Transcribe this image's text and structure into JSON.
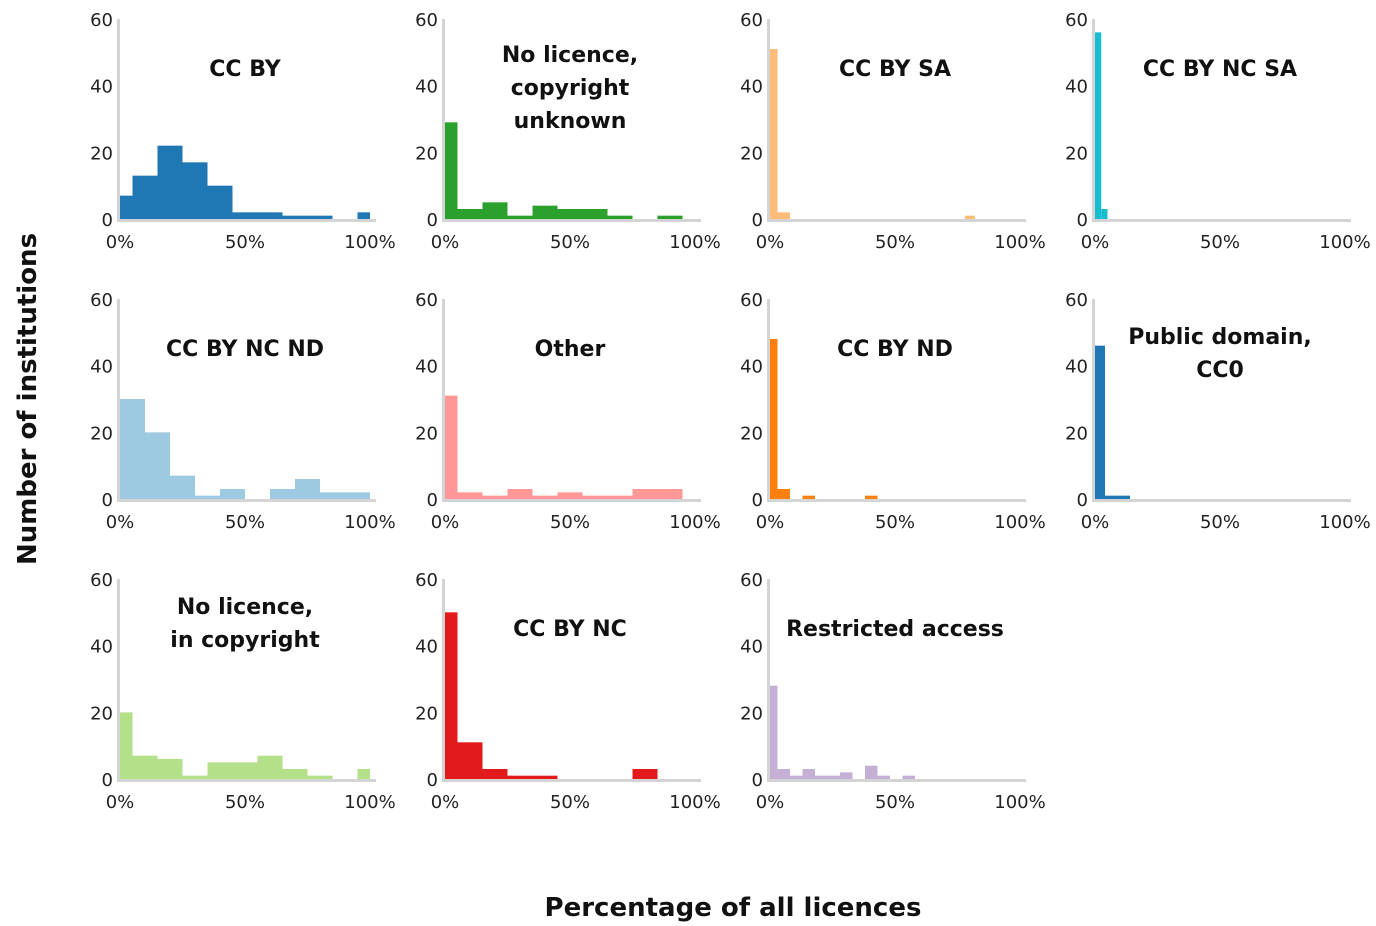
{
  "figure": {
    "xlabel": "Percentage of all licences",
    "ylabel": "Number of institutions"
  },
  "chart_data": [
    {
      "type": "bar",
      "title_lines": [
        "CC BY"
      ],
      "color": "#1f77b4",
      "xlim": [
        0,
        100
      ],
      "ylim": [
        0,
        60
      ],
      "x_ticks": [
        "0%",
        "50%",
        "100%"
      ],
      "y_ticks": [
        "0",
        "20",
        "40",
        "60"
      ],
      "bins": [
        {
          "x0": 0,
          "x1": 5,
          "count": 7
        },
        {
          "x0": 5,
          "x1": 15,
          "count": 13
        },
        {
          "x0": 15,
          "x1": 25,
          "count": 22
        },
        {
          "x0": 25,
          "x1": 35,
          "count": 17
        },
        {
          "x0": 35,
          "x1": 45,
          "count": 10
        },
        {
          "x0": 45,
          "x1": 65,
          "count": 2
        },
        {
          "x0": 65,
          "x1": 85,
          "count": 1
        },
        {
          "x0": 95,
          "x1": 100,
          "count": 2
        }
      ]
    },
    {
      "type": "bar",
      "title_lines": [
        "No licence,",
        "copyright",
        "unknown"
      ],
      "color": "#2ca02c",
      "xlim": [
        0,
        100
      ],
      "ylim": [
        0,
        60
      ],
      "x_ticks": [
        "0%",
        "50%",
        "100%"
      ],
      "y_ticks": [
        "0",
        "20",
        "40",
        "60"
      ],
      "bins": [
        {
          "x0": 0,
          "x1": 5,
          "count": 29
        },
        {
          "x0": 5,
          "x1": 15,
          "count": 3
        },
        {
          "x0": 15,
          "x1": 25,
          "count": 5
        },
        {
          "x0": 25,
          "x1": 35,
          "count": 1
        },
        {
          "x0": 35,
          "x1": 45,
          "count": 4
        },
        {
          "x0": 45,
          "x1": 65,
          "count": 3
        },
        {
          "x0": 65,
          "x1": 75,
          "count": 1
        },
        {
          "x0": 85,
          "x1": 95,
          "count": 1
        }
      ]
    },
    {
      "type": "bar",
      "title_lines": [
        "CC BY SA"
      ],
      "color": "#ffbb78",
      "xlim": [
        0,
        100
      ],
      "ylim": [
        0,
        60
      ],
      "x_ticks": [
        "0%",
        "50%",
        "100%"
      ],
      "y_ticks": [
        "0",
        "20",
        "40",
        "60"
      ],
      "bins": [
        {
          "x0": 0,
          "x1": 3,
          "count": 51
        },
        {
          "x0": 3,
          "x1": 8,
          "count": 2
        },
        {
          "x0": 78,
          "x1": 82,
          "count": 1
        }
      ]
    },
    {
      "type": "bar",
      "title_lines": [
        "CC BY NC SA"
      ],
      "color": "#17becf",
      "xlim": [
        0,
        100
      ],
      "ylim": [
        0,
        60
      ],
      "x_ticks": [
        "0%",
        "50%",
        "100%"
      ],
      "y_ticks": [
        "0",
        "20",
        "40",
        "60"
      ],
      "bins": [
        {
          "x0": 0,
          "x1": 2.5,
          "count": 56
        },
        {
          "x0": 2.5,
          "x1": 5,
          "count": 3
        }
      ]
    },
    {
      "type": "bar",
      "title_lines": [
        "CC BY NC ND"
      ],
      "color": "#9ecae1",
      "xlim": [
        0,
        100
      ],
      "ylim": [
        0,
        60
      ],
      "x_ticks": [
        "0%",
        "50%",
        "100%"
      ],
      "y_ticks": [
        "0",
        "20",
        "40",
        "60"
      ],
      "bins": [
        {
          "x0": 0,
          "x1": 10,
          "count": 30
        },
        {
          "x0": 10,
          "x1": 20,
          "count": 20
        },
        {
          "x0": 20,
          "x1": 30,
          "count": 7
        },
        {
          "x0": 30,
          "x1": 40,
          "count": 1
        },
        {
          "x0": 40,
          "x1": 50,
          "count": 3
        },
        {
          "x0": 50,
          "x1": 60,
          "count": 0
        },
        {
          "x0": 60,
          "x1": 70,
          "count": 3
        },
        {
          "x0": 70,
          "x1": 80,
          "count": 6
        },
        {
          "x0": 80,
          "x1": 100,
          "count": 2
        }
      ]
    },
    {
      "type": "bar",
      "title_lines": [
        "Other"
      ],
      "color": "#ff9896",
      "xlim": [
        0,
        100
      ],
      "ylim": [
        0,
        60
      ],
      "x_ticks": [
        "0%",
        "50%",
        "100%"
      ],
      "y_ticks": [
        "0",
        "20",
        "40",
        "60"
      ],
      "bins": [
        {
          "x0": 0,
          "x1": 5,
          "count": 31
        },
        {
          "x0": 5,
          "x1": 15,
          "count": 2
        },
        {
          "x0": 15,
          "x1": 25,
          "count": 1
        },
        {
          "x0": 25,
          "x1": 35,
          "count": 3
        },
        {
          "x0": 35,
          "x1": 45,
          "count": 1
        },
        {
          "x0": 45,
          "x1": 55,
          "count": 2
        },
        {
          "x0": 55,
          "x1": 75,
          "count": 1
        },
        {
          "x0": 75,
          "x1": 95,
          "count": 3
        }
      ]
    },
    {
      "type": "bar",
      "title_lines": [
        "CC BY ND"
      ],
      "color": "#ff7f0e",
      "xlim": [
        0,
        100
      ],
      "ylim": [
        0,
        60
      ],
      "x_ticks": [
        "0%",
        "50%",
        "100%"
      ],
      "y_ticks": [
        "0",
        "20",
        "40",
        "60"
      ],
      "bins": [
        {
          "x0": 0,
          "x1": 3,
          "count": 48
        },
        {
          "x0": 3,
          "x1": 8,
          "count": 3
        },
        {
          "x0": 13,
          "x1": 18,
          "count": 1
        },
        {
          "x0": 38,
          "x1": 43,
          "count": 1
        }
      ]
    },
    {
      "type": "bar",
      "title_lines": [
        "Public domain,",
        "CC0"
      ],
      "color": "#1f77b4",
      "xlim": [
        0,
        100
      ],
      "ylim": [
        0,
        60
      ],
      "x_ticks": [
        "0%",
        "50%",
        "100%"
      ],
      "y_ticks": [
        "0",
        "20",
        "40",
        "60"
      ],
      "bins": [
        {
          "x0": 0,
          "x1": 4,
          "count": 46
        },
        {
          "x0": 4,
          "x1": 14,
          "count": 1
        }
      ]
    },
    {
      "type": "bar",
      "title_lines": [
        "No licence,",
        "in copyright"
      ],
      "color": "#b5e08a",
      "xlim": [
        0,
        100
      ],
      "ylim": [
        0,
        60
      ],
      "x_ticks": [
        "0%",
        "50%",
        "100%"
      ],
      "y_ticks": [
        "0",
        "20",
        "40",
        "60"
      ],
      "bins": [
        {
          "x0": 0,
          "x1": 5,
          "count": 20
        },
        {
          "x0": 5,
          "x1": 15,
          "count": 7
        },
        {
          "x0": 15,
          "x1": 25,
          "count": 6
        },
        {
          "x0": 25,
          "x1": 35,
          "count": 1
        },
        {
          "x0": 35,
          "x1": 55,
          "count": 5
        },
        {
          "x0": 55,
          "x1": 65,
          "count": 7
        },
        {
          "x0": 65,
          "x1": 75,
          "count": 3
        },
        {
          "x0": 75,
          "x1": 85,
          "count": 1
        },
        {
          "x0": 95,
          "x1": 100,
          "count": 3
        }
      ]
    },
    {
      "type": "bar",
      "title_lines": [
        "CC BY NC"
      ],
      "color": "#e31a1c",
      "xlim": [
        0,
        100
      ],
      "ylim": [
        0,
        60
      ],
      "x_ticks": [
        "0%",
        "50%",
        "100%"
      ],
      "y_ticks": [
        "0",
        "20",
        "40",
        "60"
      ],
      "bins": [
        {
          "x0": 0,
          "x1": 5,
          "count": 50
        },
        {
          "x0": 5,
          "x1": 15,
          "count": 11
        },
        {
          "x0": 15,
          "x1": 25,
          "count": 3
        },
        {
          "x0": 25,
          "x1": 45,
          "count": 1
        },
        {
          "x0": 75,
          "x1": 85,
          "count": 3
        }
      ]
    },
    {
      "type": "bar",
      "title_lines": [
        "Restricted access"
      ],
      "color": "#c5b0d5",
      "xlim": [
        0,
        100
      ],
      "ylim": [
        0,
        60
      ],
      "x_ticks": [
        "0%",
        "50%",
        "100%"
      ],
      "y_ticks": [
        "0",
        "20",
        "40",
        "60"
      ],
      "bins": [
        {
          "x0": 0,
          "x1": 3,
          "count": 28
        },
        {
          "x0": 3,
          "x1": 8,
          "count": 3
        },
        {
          "x0": 8,
          "x1": 13,
          "count": 1
        },
        {
          "x0": 13,
          "x1": 18,
          "count": 3
        },
        {
          "x0": 18,
          "x1": 28,
          "count": 1
        },
        {
          "x0": 28,
          "x1": 33,
          "count": 2
        },
        {
          "x0": 38,
          "x1": 43,
          "count": 4
        },
        {
          "x0": 43,
          "x1": 48,
          "count": 1
        },
        {
          "x0": 53,
          "x1": 58,
          "count": 1
        }
      ]
    }
  ]
}
